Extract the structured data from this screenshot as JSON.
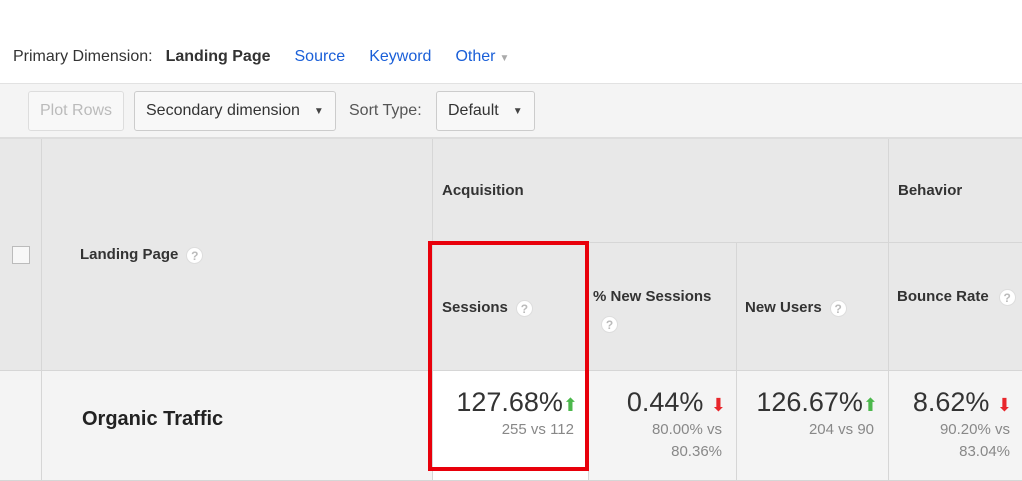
{
  "primary_dimension": {
    "label": "Primary Dimension:",
    "current": "Landing Page",
    "options": [
      "Source",
      "Keyword",
      "Other"
    ]
  },
  "toolbar": {
    "plot_rows": "Plot Rows",
    "secondary_dimension": "Secondary dimension",
    "sort_type_label": "Sort Type:",
    "sort_type_value": "Default"
  },
  "table": {
    "col_landing": "Landing Page",
    "group_acquisition": "Acquisition",
    "group_behavior": "Behavior",
    "metrics": [
      "Sessions",
      "% New Sessions",
      "New Users",
      "Bounce Rate"
    ],
    "row": {
      "label": "Organic Traffic",
      "cells": [
        {
          "change": "127.68%",
          "direction": "up",
          "compare": "255 vs 112"
        },
        {
          "change": "0.44%",
          "direction": "down",
          "compare": "80.00% vs 80.36%"
        },
        {
          "change": "126.67%",
          "direction": "up",
          "compare": "204 vs 90"
        },
        {
          "change": "8.62%",
          "direction": "down",
          "compare": "90.20% vs 83.04%"
        }
      ]
    }
  },
  "colors": {
    "up": "#4cb84c",
    "down": "#e8262b",
    "highlight": "#e8000b",
    "link": "#1a5fd8"
  }
}
